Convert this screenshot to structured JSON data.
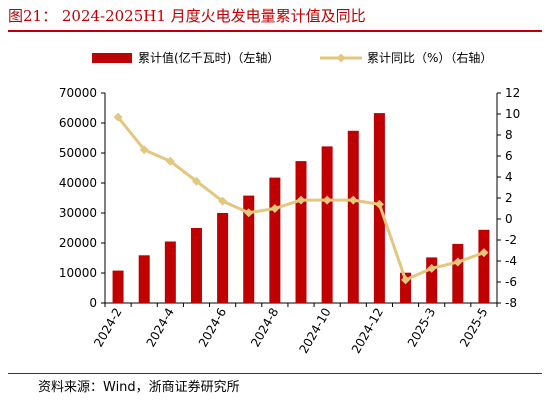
{
  "title": "图21：  2024-2025H1 月度火电发电量累计值及同比",
  "source": "资料来源：Wind，浙商证券研究所",
  "colors": {
    "bar": "#c00000",
    "line": "#e3c77e",
    "title": "#c00000"
  },
  "chart_data": {
    "type": "bar",
    "categories": [
      "2024-2",
      "2024-3",
      "2024-4",
      "2024-5",
      "2024-6",
      "2024-7",
      "2024-8",
      "2024-9",
      "2024-10",
      "2024-11",
      "2024-12",
      "2025-2",
      "2025-3",
      "2025-4",
      "2025-5"
    ],
    "x_tick_labels": [
      "2024-2",
      "2024-4",
      "2024-6",
      "2024-8",
      "2024-10",
      "2024-12",
      "2025-3",
      "2025-5"
    ],
    "series": [
      {
        "name": "累计值(亿千瓦时)（左轴）",
        "type": "bar",
        "axis": "left",
        "values": [
          10800,
          15900,
          20500,
          25000,
          30000,
          35800,
          41800,
          47300,
          52200,
          57400,
          63300,
          10100,
          15200,
          19700,
          24400
        ]
      },
      {
        "name": "累计同比（%）（右轴）",
        "type": "line",
        "axis": "right",
        "values": [
          9.7,
          6.6,
          5.5,
          3.6,
          1.7,
          0.6,
          1.0,
          1.8,
          1.8,
          1.8,
          1.4,
          -5.8,
          -4.7,
          -4.1,
          -3.2
        ]
      }
    ],
    "y_left": {
      "min": 0,
      "max": 70000,
      "step": 10000,
      "tick_labels": [
        "0",
        "10000",
        "20000",
        "30000",
        "40000",
        "50000",
        "60000",
        "70000"
      ]
    },
    "y_right": {
      "min": -8,
      "max": 12,
      "step": 2,
      "tick_labels": [
        "-8",
        "-6",
        "-4",
        "-2",
        "0",
        "2",
        "4",
        "6",
        "8",
        "10",
        "12"
      ]
    },
    "legend_position": "top",
    "grid": false
  }
}
